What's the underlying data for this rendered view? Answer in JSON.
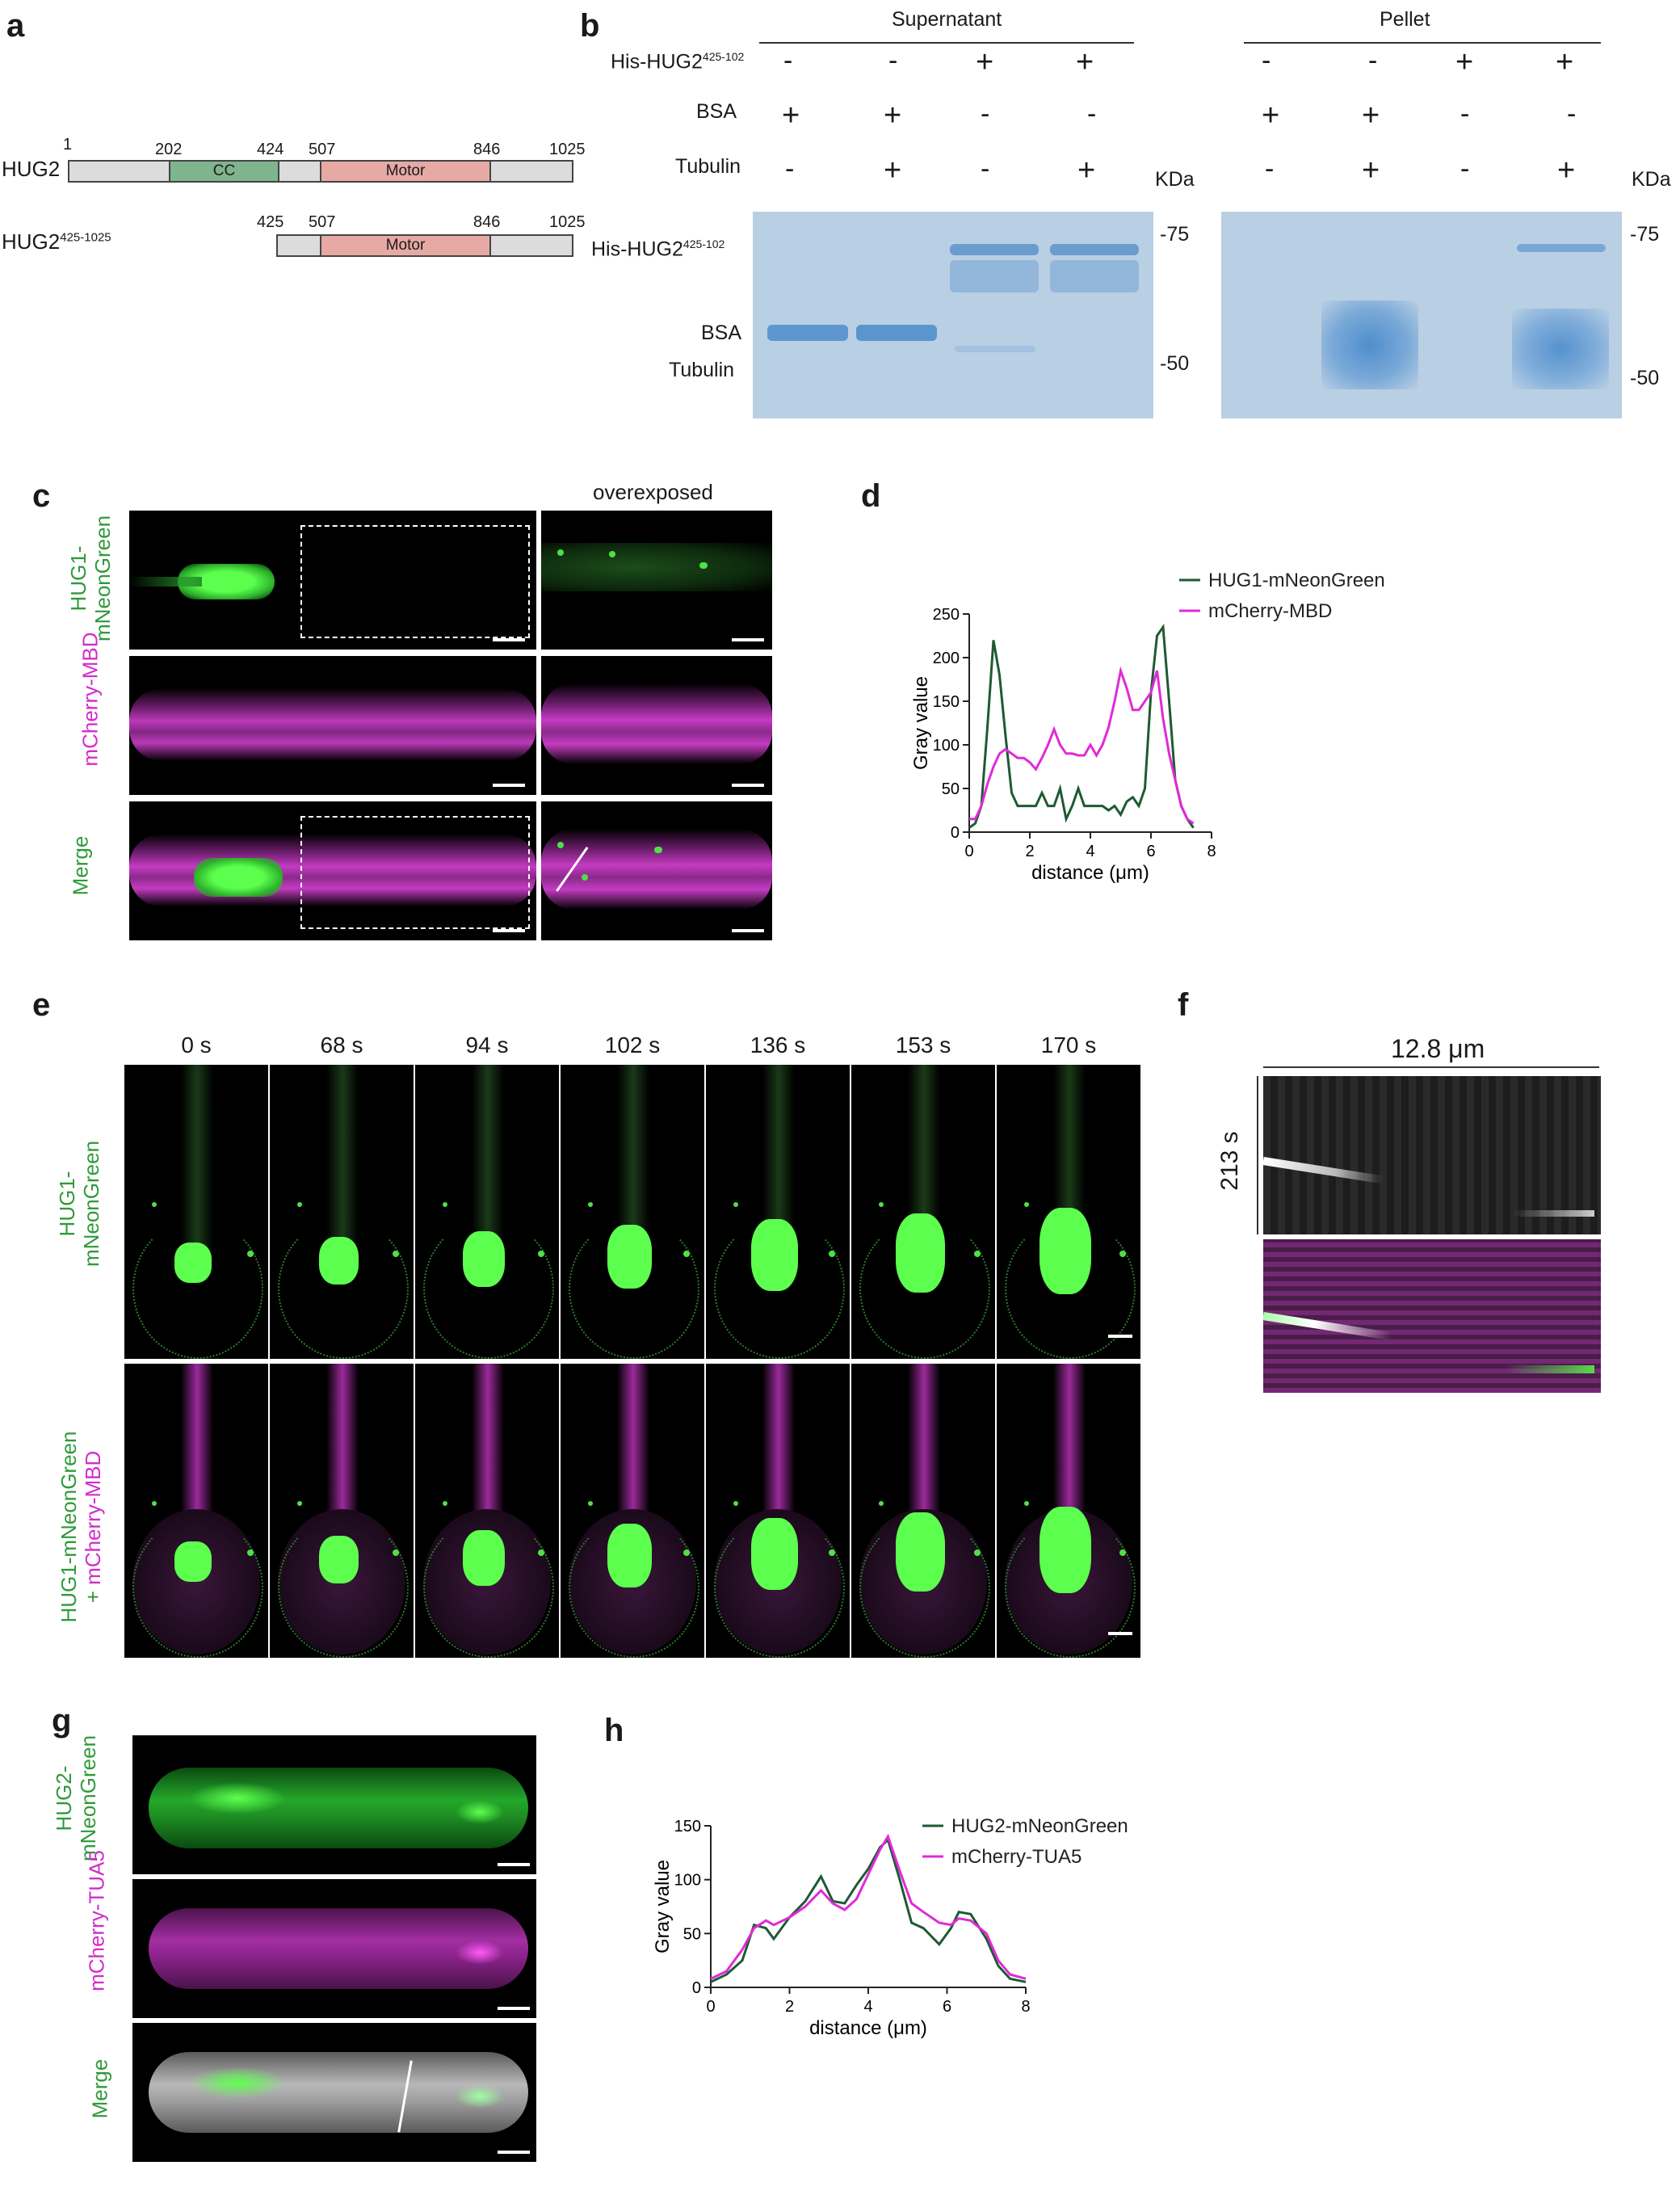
{
  "panels": {
    "a": "a",
    "b": "b",
    "c": "c",
    "d": "d",
    "e": "e",
    "f": "f",
    "g": "g",
    "h": "h"
  },
  "panel_a": {
    "constructs": [
      {
        "name": "HUG2",
        "positions": [
          "1",
          "202",
          "424",
          "507",
          "846",
          "1025"
        ],
        "domains": [
          "CC",
          "Motor"
        ]
      },
      {
        "name": "HUG2",
        "sup": "425-1025",
        "positions": [
          "425",
          "507",
          "846",
          "1025"
        ],
        "domains": [
          "Motor"
        ]
      }
    ]
  },
  "panel_b": {
    "group_supernatant": "Supernatant",
    "group_pellet": "Pellet",
    "row_his_prefix": "His-HUG2",
    "row_his_sup": "425-102",
    "row_bsa": "BSA",
    "row_tubulin": "Tubulin",
    "sup_signs": {
      "his": [
        "-",
        "-",
        "+",
        "+"
      ],
      "bsa": [
        "+",
        "+",
        "-",
        "-"
      ],
      "tubulin": [
        "-",
        "+",
        "-",
        "+"
      ]
    },
    "pel_signs": {
      "his": [
        "-",
        "-",
        "+",
        "+"
      ],
      "bsa": [
        "+",
        "+",
        "-",
        "-"
      ],
      "tubulin": [
        "-",
        "+",
        "-",
        "+"
      ]
    },
    "kda": "KDa",
    "marker_75": "75",
    "marker_50": "50",
    "gel_label_his_prefix": "His-HUG2",
    "gel_label_his_sup": "425-102",
    "gel_label_bsa": "BSA",
    "gel_label_tubulin": "Tubulin"
  },
  "panel_c": {
    "overexposed": "overexposed",
    "row1_label_a": "HUG1-",
    "row1_label_b": "mNeonGreen",
    "row2_label": "mCherry-MBD",
    "row3_label": "Merge"
  },
  "panel_e": {
    "times": [
      "0 s",
      "68 s",
      "94 s",
      "102 s",
      "136 s",
      "153 s",
      "170 s"
    ],
    "row1_label_a": "HUG1-",
    "row1_label_b": "mNeonGreen",
    "row2_label_a": "HUG1-mNeonGreen",
    "row2_label_b_plus": "+ ",
    "row2_label_b": "mCherry-MBD"
  },
  "panel_f": {
    "width_label": "12.8 μm",
    "time_label": "213 s"
  },
  "panel_g": {
    "row1_label_a": "HUG2-",
    "row1_label_b": "mNeonGreen",
    "row2_label": "mCherry-TUA5",
    "row3_label": "Merge"
  },
  "chart_data": [
    {
      "panel": "d",
      "type": "line",
      "xlabel": "distance (μm)",
      "ylabel": "Gray value",
      "xlim": [
        0,
        8
      ],
      "ylim": [
        0,
        250
      ],
      "xticks": [
        "0",
        "2",
        "4",
        "6",
        "8"
      ],
      "yticks": [
        "0",
        "50",
        "100",
        "150",
        "200",
        "250"
      ],
      "legend": "top",
      "series": [
        {
          "name": "HUG1-mNeonGreen",
          "color": "#1e5a32",
          "x": [
            0,
            0.2,
            0.4,
            0.6,
            0.8,
            1.0,
            1.2,
            1.4,
            1.6,
            1.8,
            2.0,
            2.2,
            2.4,
            2.6,
            2.8,
            3.0,
            3.2,
            3.4,
            3.6,
            3.8,
            4.0,
            4.2,
            4.4,
            4.6,
            4.8,
            5.0,
            5.2,
            5.4,
            5.6,
            5.8,
            6.0,
            6.2,
            6.4,
            6.6,
            6.8,
            7.0,
            7.2,
            7.4
          ],
          "y": [
            5,
            10,
            30,
            120,
            220,
            180,
            110,
            45,
            30,
            30,
            30,
            30,
            45,
            30,
            30,
            50,
            15,
            30,
            50,
            30,
            30,
            30,
            30,
            25,
            30,
            20,
            35,
            40,
            30,
            50,
            160,
            225,
            235,
            150,
            60,
            30,
            15,
            5
          ]
        },
        {
          "name": "mCherry-MBD",
          "color": "#e02ad8",
          "x": [
            0,
            0.2,
            0.4,
            0.6,
            0.8,
            1.0,
            1.2,
            1.4,
            1.6,
            1.8,
            2.0,
            2.2,
            2.4,
            2.6,
            2.8,
            3.0,
            3.2,
            3.4,
            3.6,
            3.8,
            4.0,
            4.2,
            4.4,
            4.6,
            4.8,
            5.0,
            5.2,
            5.4,
            5.6,
            5.8,
            6.0,
            6.2,
            6.4,
            6.6,
            6.8,
            7.0,
            7.2,
            7.4
          ],
          "y": [
            15,
            15,
            30,
            55,
            75,
            90,
            95,
            90,
            85,
            85,
            80,
            72,
            85,
            100,
            118,
            100,
            90,
            90,
            88,
            88,
            100,
            88,
            100,
            120,
            150,
            185,
            165,
            140,
            140,
            150,
            160,
            185,
            130,
            90,
            60,
            30,
            15,
            10
          ]
        }
      ]
    },
    {
      "panel": "h",
      "type": "line",
      "xlabel": "distance (μm)",
      "ylabel": "Gray value",
      "xlim": [
        0,
        8
      ],
      "ylim": [
        0,
        150
      ],
      "xticks": [
        "0",
        "2",
        "4",
        "6",
        "8"
      ],
      "yticks": [
        "0",
        "50",
        "100",
        "150"
      ],
      "legend": "top-right",
      "series": [
        {
          "name": "HUG2-mNeonGreen",
          "color": "#1e5a32",
          "x": [
            0,
            0.4,
            0.8,
            1.1,
            1.4,
            1.6,
            2.0,
            2.4,
            2.8,
            3.1,
            3.4,
            3.7,
            4.0,
            4.3,
            4.5,
            4.8,
            5.1,
            5.4,
            5.8,
            6.1,
            6.3,
            6.6,
            7.0,
            7.3,
            7.6,
            8.0
          ],
          "y": [
            5,
            12,
            25,
            58,
            55,
            45,
            65,
            80,
            103,
            80,
            78,
            95,
            110,
            130,
            137,
            100,
            60,
            55,
            40,
            55,
            70,
            68,
            45,
            20,
            8,
            5
          ]
        },
        {
          "name": "mCherry-TUA5",
          "color": "#e02ad8",
          "x": [
            0,
            0.4,
            0.8,
            1.1,
            1.4,
            1.6,
            2.0,
            2.4,
            2.8,
            3.1,
            3.4,
            3.7,
            4.0,
            4.3,
            4.5,
            4.8,
            5.1,
            5.4,
            5.8,
            6.1,
            6.3,
            6.6,
            7.0,
            7.3,
            7.6,
            8.0
          ],
          "y": [
            8,
            15,
            35,
            55,
            62,
            58,
            65,
            75,
            90,
            78,
            72,
            82,
            105,
            128,
            140,
            108,
            78,
            70,
            60,
            58,
            64,
            62,
            50,
            25,
            12,
            8
          ]
        }
      ]
    }
  ]
}
